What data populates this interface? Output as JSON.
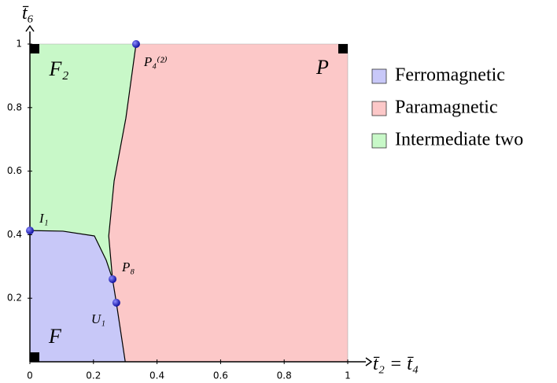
{
  "chart_data": {
    "type": "phase-diagram",
    "x_label": "t̄₂ = t̄₄",
    "y_label": "t̄₆",
    "xlim": [
      0,
      1
    ],
    "ylim": [
      0,
      1
    ],
    "xticks": [
      0,
      0.2,
      0.4,
      0.6,
      0.8,
      1
    ],
    "yticks": [
      0.2,
      0.4,
      0.6,
      0.8,
      1
    ],
    "regions": [
      {
        "name": "Ferromagnetic",
        "label": "F",
        "color": "#c8c8f8",
        "x": [
          0,
          0.3,
          0.272,
          0.26,
          0.24,
          0.203,
          0.104,
          0
        ],
        "y": [
          0,
          0,
          0.186,
          0.26,
          0.32,
          0.396,
          0.411,
          0.413
        ]
      },
      {
        "name": "Paramagnetic",
        "label": "P",
        "color": "#fcc8c8",
        "x": [
          0.3,
          1,
          1,
          0.334,
          0.302,
          0.265,
          0.248,
          0.26,
          0.272
        ],
        "y": [
          0,
          0,
          1,
          1,
          0.767,
          0.569,
          0.396,
          0.26,
          0.186
        ]
      },
      {
        "name": "Intermediate two",
        "label": "F₂",
        "color": "#c8f8c8",
        "x": [
          0,
          0.104,
          0.203,
          0.24,
          0.26,
          0.248,
          0.265,
          0.302,
          0.334,
          0
        ],
        "y": [
          0.413,
          0.411,
          0.396,
          0.32,
          0.26,
          0.396,
          0.569,
          0.767,
          1,
          1
        ]
      }
    ],
    "boundaries": [
      {
        "x": [
          0.3,
          0.272,
          0.26,
          0.24,
          0.203,
          0.104,
          0
        ],
        "y": [
          0,
          0.186,
          0.26,
          0.32,
          0.396,
          0.411,
          0.413
        ]
      },
      {
        "x": [
          0.26,
          0.248,
          0.265,
          0.302,
          0.334
        ],
        "y": [
          0.26,
          0.396,
          0.569,
          0.767,
          1
        ]
      }
    ],
    "points": {
      "labels": [
        "I₁",
        "P₈",
        "U₁",
        "P₄⁽²⁾"
      ],
      "x": [
        0,
        0.26,
        0.272,
        0.334
      ],
      "y": [
        0.413,
        0.26,
        0.186,
        1
      ],
      "color": "#2a2ad0"
    },
    "corner_points": {
      "x": [
        0,
        0,
        1
      ],
      "y": [
        0,
        1,
        1
      ]
    }
  }
}
